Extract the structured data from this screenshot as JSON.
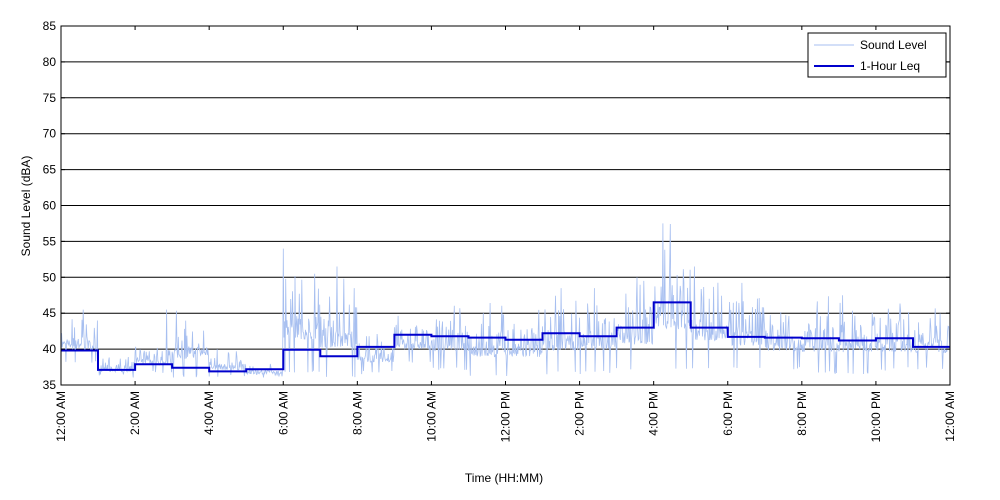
{
  "chart_data": {
    "type": "line",
    "title": "",
    "xlabel": "Time (HH:MM)",
    "ylabel": "Sound Level (dBA)",
    "ylim": [
      35,
      85
    ],
    "yticks": [
      35,
      40,
      45,
      50,
      55,
      60,
      65,
      70,
      75,
      80,
      85
    ],
    "xlim_hours": [
      0,
      24
    ],
    "xticks": [
      {
        "hour": 0,
        "label": "12:00 AM"
      },
      {
        "hour": 2,
        "label": "2:00 AM"
      },
      {
        "hour": 4,
        "label": "4:00 AM"
      },
      {
        "hour": 6,
        "label": "6:00 AM"
      },
      {
        "hour": 8,
        "label": "8:00 AM"
      },
      {
        "hour": 10,
        "label": "10:00 AM"
      },
      {
        "hour": 12,
        "label": "12:00 PM"
      },
      {
        "hour": 14,
        "label": "2:00 PM"
      },
      {
        "hour": 16,
        "label": "4:00 PM"
      },
      {
        "hour": 18,
        "label": "6:00 PM"
      },
      {
        "hour": 20,
        "label": "8:00 PM"
      },
      {
        "hour": 22,
        "label": "10:00 PM"
      },
      {
        "hour": 24,
        "label": "12:00 AM"
      }
    ],
    "grid": "horizontal",
    "legend_position": "top-right",
    "series": [
      {
        "name": "Sound Level",
        "color": "#a7bff0",
        "hourly_range": [
          [
            38,
            45
          ],
          [
            36,
            39
          ],
          [
            36.5,
            41
          ],
          [
            36,
            45.5
          ],
          [
            36,
            40
          ],
          [
            36,
            38
          ],
          [
            36.5,
            54
          ],
          [
            36,
            51
          ],
          [
            36.5,
            42.5
          ],
          [
            38,
            45
          ],
          [
            37,
            46.5
          ],
          [
            36,
            46.5
          ],
          [
            36,
            46
          ],
          [
            36.5,
            48.5
          ],
          [
            36.5,
            49
          ],
          [
            37,
            50
          ],
          [
            37,
            57.5
          ],
          [
            37,
            52
          ],
          [
            37,
            49.5
          ],
          [
            37,
            47
          ],
          [
            36.5,
            47.5
          ],
          [
            36.5,
            47.5
          ],
          [
            37,
            46.5
          ],
          [
            37,
            46
          ]
        ],
        "spikes": [
          {
            "hour": 0.6,
            "value": 45.5
          },
          {
            "hour": 2.85,
            "value": 45.5
          },
          {
            "hour": 6.0,
            "value": 54
          },
          {
            "hour": 7.45,
            "value": 51.5
          },
          {
            "hour": 13.5,
            "value": 48.5
          },
          {
            "hour": 14.4,
            "value": 48.5
          },
          {
            "hour": 15.55,
            "value": 50
          },
          {
            "hour": 16.25,
            "value": 57.5
          },
          {
            "hour": 17.1,
            "value": 51.5
          },
          {
            "hour": 21.1,
            "value": 47.5
          }
        ]
      },
      {
        "name": "1-Hour Leq",
        "color": "#0000cc",
        "hours": [
          0,
          1,
          2,
          3,
          4,
          5,
          6,
          7,
          8,
          9,
          10,
          11,
          12,
          13,
          14,
          15,
          16,
          17,
          18,
          19,
          20,
          21,
          22,
          23
        ],
        "values": [
          39.8,
          37.1,
          37.9,
          37.4,
          36.9,
          37.2,
          39.9,
          39.0,
          40.3,
          42.0,
          41.8,
          41.6,
          41.3,
          42.2,
          41.8,
          43.0,
          46.5,
          43.0,
          41.7,
          41.6,
          41.5,
          41.2,
          41.5,
          40.3
        ]
      }
    ]
  }
}
